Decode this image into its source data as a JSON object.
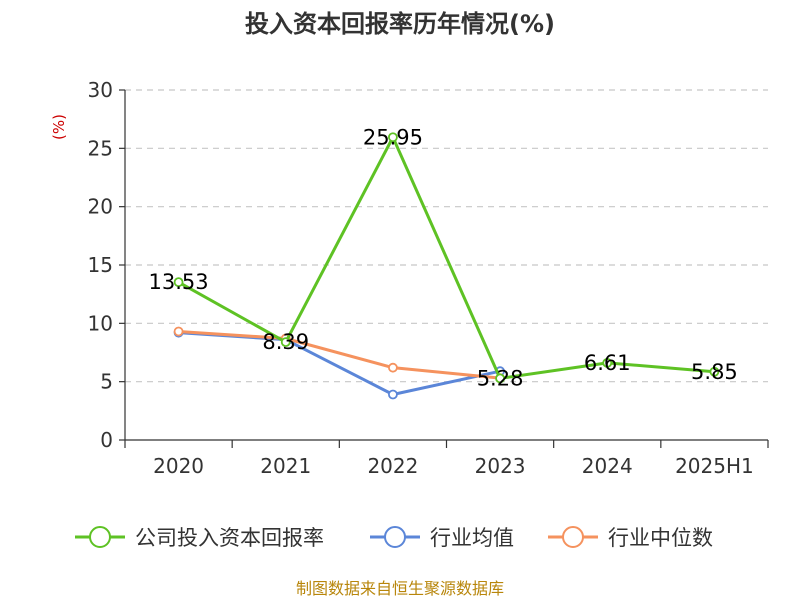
{
  "chart_data": {
    "type": "line",
    "title": "投入资本回报率历年情况(%)",
    "y_unit": "(%)",
    "categories": [
      "2020",
      "2021",
      "2022",
      "2023",
      "2024",
      "2025H1"
    ],
    "ylim": [
      0,
      30
    ],
    "yticks": [
      0,
      5,
      10,
      15,
      20,
      25,
      30
    ],
    "grid": true,
    "legend_position": "bottom",
    "series": [
      {
        "name": "公司投入资本回报率",
        "color": "#5ec224",
        "values": [
          13.53,
          8.39,
          25.95,
          5.28,
          6.61,
          5.85
        ],
        "labels": [
          "13.53",
          "8.39",
          "25.95",
          "5.28",
          "6.61",
          "5.85"
        ]
      },
      {
        "name": "行业均值",
        "color": "#5b86d8",
        "values": [
          9.2,
          8.6,
          3.9,
          5.9,
          null,
          null
        ]
      },
      {
        "name": "行业中位数",
        "color": "#f5925e",
        "values": [
          9.3,
          8.7,
          6.2,
          5.3,
          null,
          null
        ]
      }
    ]
  },
  "footer": {
    "source": "制图数据来自恒生聚源数据库"
  }
}
